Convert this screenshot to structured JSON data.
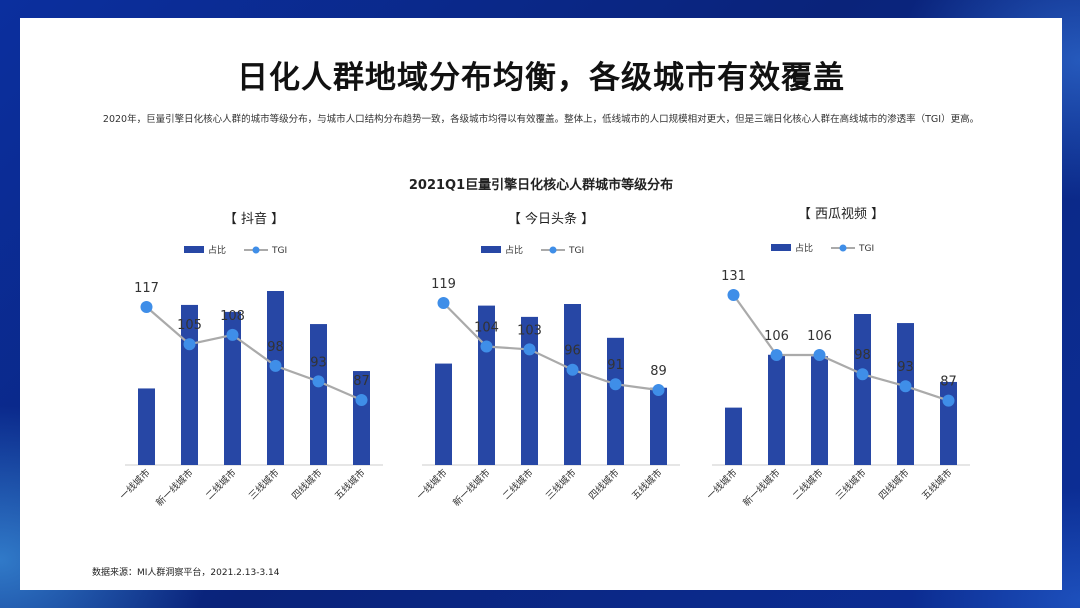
{
  "page": {
    "title": "日化人群地域分布均衡，各级城市有效覆盖",
    "subtitle": "2020年，巨量引擎日化核心人群的城市等级分布，与城市人口结构分布趋势一致，各级城市均得以有效覆盖。整体上，低线城市的人口规模相对更大，但是三端日化核心人群在高线城市的渗透率（TGI）更高。",
    "chart_title": "2021Q1巨量引擎日化核心人群城市等级分布",
    "source": "数据来源：MI人群洞察平台，2021.2.13-3.14"
  },
  "colors": {
    "bar": "#2747a5",
    "line": "#aaaaaa",
    "dot": "#3f8ee8",
    "label": "#333333"
  },
  "chart_data": [
    {
      "type": "bar",
      "title": "【 抖音 】",
      "categories": [
        "一线城市",
        "新一线城市",
        "二线城市",
        "三线城市",
        "四线城市",
        "五线城市"
      ],
      "series": [
        {
          "name": "占比",
          "type": "bar",
          "values": [
            0.44,
            0.92,
            0.88,
            1.0,
            0.81,
            0.54
          ]
        },
        {
          "name": "TGI",
          "type": "line",
          "values": [
            117,
            105,
            108,
            98,
            93,
            87
          ]
        }
      ],
      "legend": "top"
    },
    {
      "type": "bar",
      "title": "【 今日头条 】",
      "categories": [
        "一线城市",
        "新一线城市",
        "二线城市",
        "三线城市",
        "四线城市",
        "五线城市"
      ],
      "series": [
        {
          "name": "占比",
          "type": "bar",
          "values": [
            0.63,
            0.99,
            0.92,
            1.0,
            0.79,
            0.48
          ]
        },
        {
          "name": "TGI",
          "type": "line",
          "values": [
            119,
            104,
            103,
            96,
            91,
            89
          ]
        }
      ],
      "legend": "top"
    },
    {
      "type": "bar",
      "title": "【 西瓜视频 】",
      "categories": [
        "一线城市",
        "新一线城市",
        "二线城市",
        "三线城市",
        "四线城市",
        "五线城市"
      ],
      "series": [
        {
          "name": "占比",
          "type": "bar",
          "values": [
            0.38,
            0.73,
            0.72,
            1.0,
            0.94,
            0.55
          ]
        },
        {
          "name": "TGI",
          "type": "line",
          "values": [
            131,
            106,
            106,
            98,
            93,
            87
          ]
        }
      ],
      "legend": "top"
    }
  ]
}
